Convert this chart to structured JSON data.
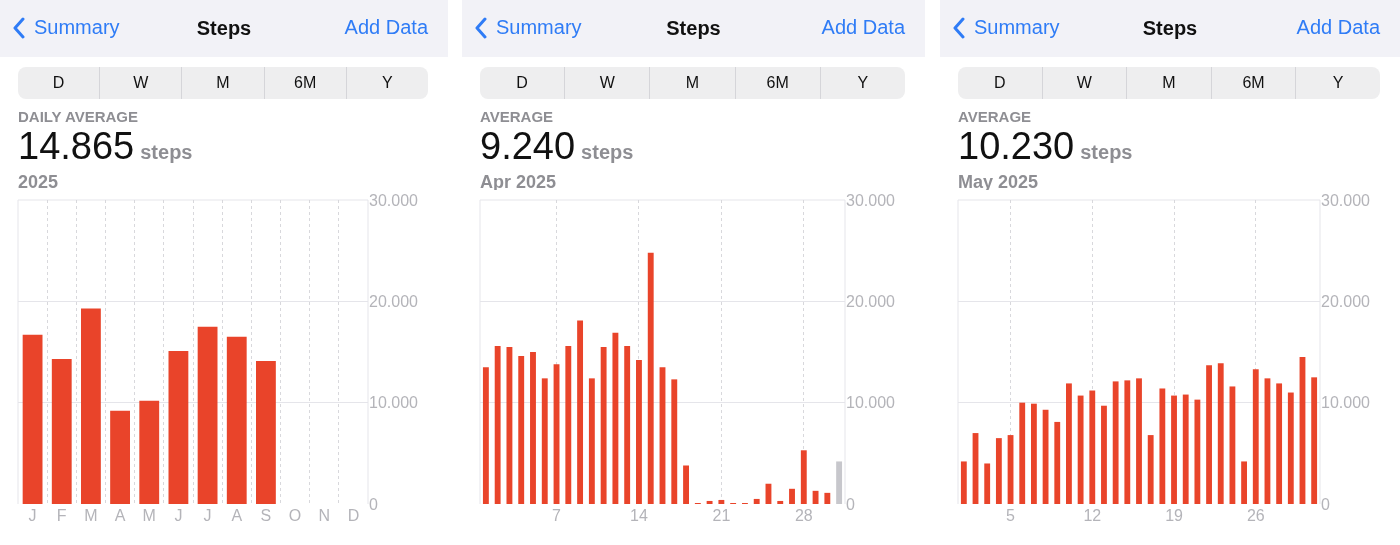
{
  "chart_data": [
    {
      "type": "bar",
      "title": "Steps",
      "annotations": [
        "Summary",
        "Add Data",
        "D",
        "W",
        "M",
        "6M",
        "Y",
        "DAILY AVERAGE",
        "14.865",
        "steps",
        "2025"
      ],
      "categories": [
        "J",
        "F",
        "M",
        "A",
        "M",
        "J",
        "J",
        "A",
        "S",
        "O",
        "N",
        "D"
      ],
      "values": [
        16700,
        14300,
        19300,
        9200,
        10200,
        15100,
        17500,
        16500,
        14100,
        null,
        null,
        null
      ],
      "color": "#e9442a",
      "ylim": [
        0,
        30000
      ],
      "yticks": [
        {
          "value": 0,
          "label": "0"
        },
        {
          "value": 10000,
          "label": "10.000"
        },
        {
          "value": 20000,
          "label": "20.000"
        },
        {
          "value": 30000,
          "label": "30.000"
        }
      ],
      "grid": true
    },
    {
      "type": "bar",
      "title": "Steps",
      "annotations": [
        "Summary",
        "Add Data",
        "D",
        "W",
        "M",
        "6M",
        "Y",
        "AVERAGE",
        "9.240",
        "steps",
        "Apr 2025"
      ],
      "x": [
        1,
        2,
        3,
        4,
        5,
        6,
        7,
        8,
        9,
        10,
        11,
        12,
        13,
        14,
        15,
        16,
        17,
        18,
        19,
        20,
        21,
        22,
        23,
        24,
        25,
        26,
        27,
        28,
        29,
        30,
        31
      ],
      "values": [
        13500,
        15600,
        15500,
        14600,
        15000,
        12400,
        13800,
        15600,
        18100,
        12400,
        15500,
        16900,
        15600,
        14200,
        24800,
        13500,
        12300,
        3800,
        100,
        300,
        400,
        100,
        100,
        500,
        2000,
        300,
        1500,
        5300,
        1300,
        1100,
        4200
      ],
      "colors": [
        "#e9442a",
        "#e9442a",
        "#e9442a",
        "#e9442a",
        "#e9442a",
        "#e9442a",
        "#e9442a",
        "#e9442a",
        "#e9442a",
        "#e9442a",
        "#e9442a",
        "#e9442a",
        "#e9442a",
        "#e9442a",
        "#e9442a",
        "#e9442a",
        "#e9442a",
        "#e9442a",
        "#e9442a",
        "#e9442a",
        "#e9442a",
        "#e9442a",
        "#e9442a",
        "#e9442a",
        "#e9442a",
        "#e9442a",
        "#e9442a",
        "#e9442a",
        "#e9442a",
        "#e9442a",
        "#c7c7cc"
      ],
      "xlim": [
        0.5,
        31.5
      ],
      "xticks": [
        7,
        14,
        21,
        28
      ],
      "ylim": [
        0,
        30000
      ],
      "yticks": [
        {
          "value": 0,
          "label": "0"
        },
        {
          "value": 10000,
          "label": "10.000"
        },
        {
          "value": 20000,
          "label": "20.000"
        },
        {
          "value": 30000,
          "label": "30.000"
        }
      ],
      "grid": true
    },
    {
      "type": "bar",
      "title": "Steps",
      "annotations": [
        "Summary",
        "Add Data",
        "D",
        "W",
        "M",
        "6M",
        "Y",
        "AVERAGE",
        "10.230",
        "steps",
        "May 2025"
      ],
      "x": [
        1,
        2,
        3,
        4,
        5,
        6,
        7,
        8,
        9,
        10,
        11,
        12,
        13,
        14,
        15,
        16,
        17,
        18,
        19,
        20,
        21,
        22,
        23,
        24,
        25,
        26,
        27,
        28,
        29,
        30,
        31
      ],
      "values": [
        4200,
        7000,
        4000,
        6500,
        6800,
        10000,
        9900,
        9300,
        8100,
        11900,
        10700,
        11200,
        9700,
        12100,
        12200,
        12400,
        6800,
        11400,
        10700,
        10800,
        10300,
        13700,
        13900,
        11600,
        4200,
        13300,
        12400,
        11900,
        11000,
        14500,
        12500
      ],
      "color": "#e9442a",
      "xlim": [
        0.5,
        31.5
      ],
      "xticks": [
        5,
        12,
        19,
        26
      ],
      "ylim": [
        0,
        30000
      ],
      "yticks": [
        {
          "value": 0,
          "label": "0"
        },
        {
          "value": 10000,
          "label": "10.000"
        },
        {
          "value": 20000,
          "label": "20.000"
        },
        {
          "value": 30000,
          "label": "30.000"
        }
      ],
      "grid": true
    }
  ]
}
